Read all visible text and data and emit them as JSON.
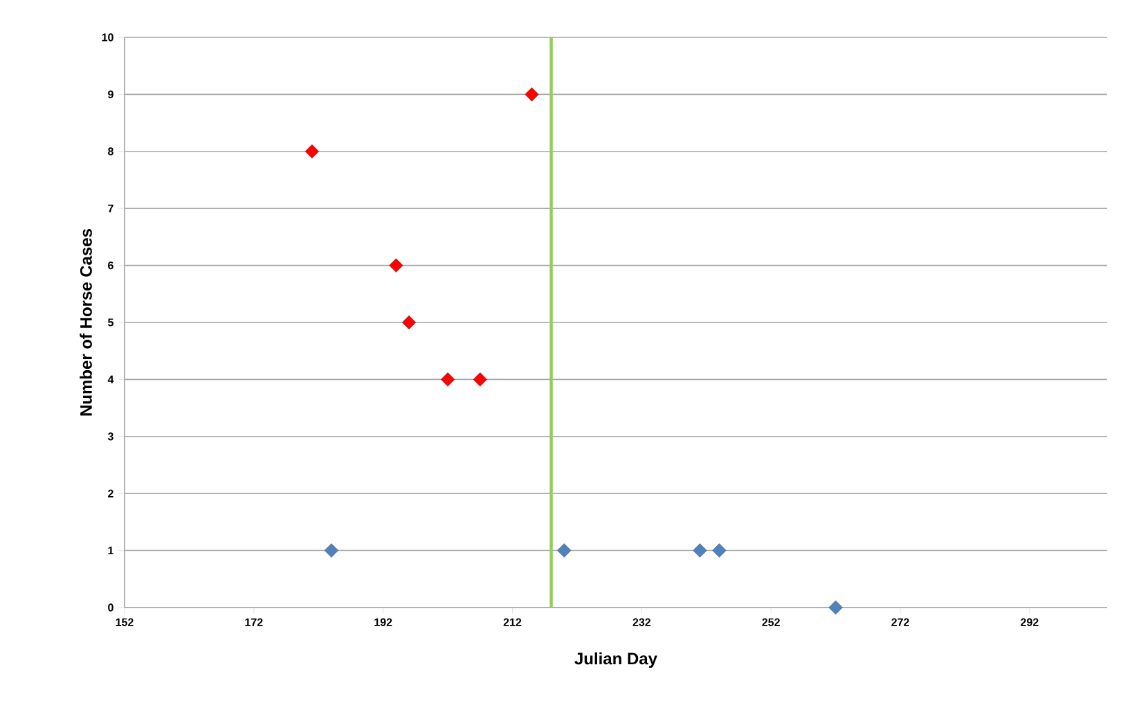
{
  "chart_data": {
    "type": "scatter",
    "xlabel": "Julian Day",
    "ylabel": "Number of Horse Cases",
    "xlim": [
      152,
      304
    ],
    "xticks": [
      152,
      172,
      192,
      212,
      232,
      252,
      272,
      292
    ],
    "ylim": [
      0,
      10
    ],
    "yticks": [
      0,
      1,
      2,
      3,
      4,
      5,
      6,
      7,
      8,
      9,
      10
    ],
    "grid": "y",
    "marker": "diamond",
    "series": [
      {
        "color": "#ff0000",
        "x": [
          181,
          194,
          196,
          202,
          207,
          215
        ],
        "values": [
          8,
          6,
          5,
          4,
          4,
          9
        ]
      },
      {
        "color": "#4f81bd",
        "x": [
          184,
          220,
          241,
          244,
          262
        ],
        "values": [
          1,
          1,
          1,
          1,
          0
        ]
      }
    ],
    "ref_lines": [
      {
        "axis": "x",
        "value": 218,
        "color": "#92d050"
      }
    ]
  }
}
